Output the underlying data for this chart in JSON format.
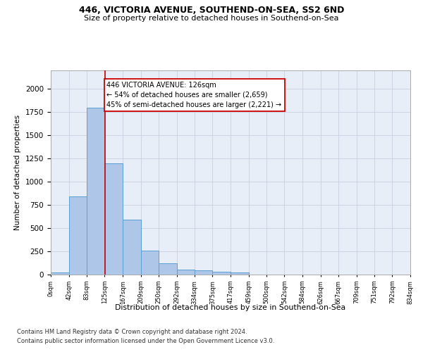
{
  "title1": "446, VICTORIA AVENUE, SOUTHEND-ON-SEA, SS2 6ND",
  "title2": "Size of property relative to detached houses in Southend-on-Sea",
  "xlabel": "Distribution of detached houses by size in Southend-on-Sea",
  "ylabel": "Number of detached properties",
  "footnote1": "Contains HM Land Registry data © Crown copyright and database right 2024.",
  "footnote2": "Contains public sector information licensed under the Open Government Licence v3.0.",
  "bar_edges": [
    0,
    42,
    83,
    125,
    167,
    209,
    250,
    292,
    334,
    375,
    417,
    459,
    500,
    542,
    584,
    626,
    667,
    709,
    751,
    792,
    834
  ],
  "bar_heights": [
    25,
    845,
    1800,
    1200,
    590,
    260,
    125,
    50,
    45,
    30,
    20,
    0,
    0,
    0,
    0,
    0,
    0,
    0,
    0,
    0
  ],
  "bar_color": "#aec6e8",
  "bar_edgecolor": "#5a9fd4",
  "grid_color": "#c8d0e0",
  "bg_color": "#e8eef8",
  "annotation_text": "446 VICTORIA AVENUE: 126sqm\n← 54% of detached houses are smaller (2,659)\n45% of semi-detached houses are larger (2,221) →",
  "vline_x": 126,
  "vline_color": "#cc0000",
  "annotation_box_edgecolor": "#cc0000",
  "ylim": [
    0,
    2200
  ],
  "tick_labels": [
    "0sqm",
    "42sqm",
    "83sqm",
    "125sqm",
    "167sqm",
    "209sqm",
    "250sqm",
    "292sqm",
    "334sqm",
    "375sqm",
    "417sqm",
    "459sqm",
    "500sqm",
    "542sqm",
    "584sqm",
    "626sqm",
    "667sqm",
    "709sqm",
    "751sqm",
    "792sqm",
    "834sqm"
  ]
}
